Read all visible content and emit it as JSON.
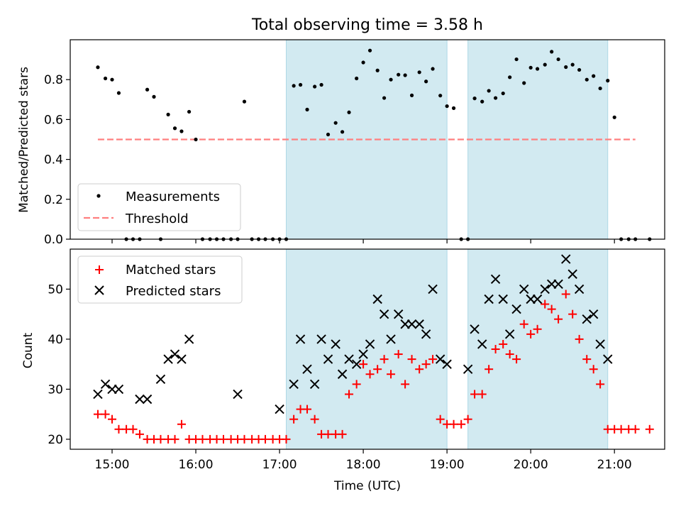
{
  "title": "Total observing time = 3.58 h",
  "colors": {
    "shade": "#add8e6",
    "measurement": "#000000",
    "threshold": "#ff7f7f",
    "matched": "#ff0000",
    "predicted": "#000000"
  },
  "chart_data": [
    {
      "type": "scatter",
      "panel": "top",
      "ylabel": "Matched/Predicted stars",
      "ylim": [
        0,
        1.0
      ],
      "yticks": [
        "0.0",
        "0.2",
        "0.4",
        "0.6",
        "0.8"
      ],
      "xlim": [
        14.5,
        21.6
      ],
      "grid": false,
      "legend": {
        "placement": "lower-left",
        "entries": [
          "Measurements",
          "Threshold"
        ]
      },
      "shaded_intervals": [
        [
          17.08,
          19.0
        ],
        [
          19.25,
          20.92
        ]
      ],
      "threshold": {
        "name": "Threshold",
        "value": 0.5,
        "x": [
          14.83,
          21.25
        ]
      },
      "series": [
        {
          "name": "Measurements",
          "marker": "dot",
          "points": [
            [
              14.83,
              0.862
            ],
            [
              14.92,
              0.806
            ],
            [
              15.0,
              0.8
            ],
            [
              15.08,
              0.733
            ],
            [
              15.25,
              0.0
            ],
            [
              15.33,
              0.0
            ],
            [
              15.17,
              0.0
            ],
            [
              15.42,
              0.75
            ],
            [
              15.5,
              0.714
            ],
            [
              15.58,
              0.0
            ],
            [
              15.67,
              0.625
            ],
            [
              15.75,
              0.556
            ],
            [
              15.83,
              0.541
            ],
            [
              15.92,
              0.639
            ],
            [
              16.0,
              0.5
            ],
            [
              16.08,
              0.0
            ],
            [
              16.17,
              0.0
            ],
            [
              16.25,
              0.0
            ],
            [
              16.33,
              0.0
            ],
            [
              16.42,
              0.0
            ],
            [
              16.5,
              0.0
            ],
            [
              16.58,
              0.69
            ],
            [
              16.67,
              0.0
            ],
            [
              16.75,
              0.0
            ],
            [
              16.83,
              0.0
            ],
            [
              16.92,
              0.0
            ],
            [
              17.0,
              0.0
            ],
            [
              17.08,
              0.0
            ],
            [
              17.17,
              0.769
            ],
            [
              17.25,
              0.774
            ],
            [
              17.33,
              0.65
            ],
            [
              17.42,
              0.765
            ],
            [
              17.5,
              0.774
            ],
            [
              17.58,
              0.525
            ],
            [
              17.67,
              0.583
            ],
            [
              17.75,
              0.538
            ],
            [
              17.83,
              0.636
            ],
            [
              17.92,
              0.806
            ],
            [
              18.0,
              0.886
            ],
            [
              18.08,
              0.946
            ],
            [
              18.17,
              0.846
            ],
            [
              18.25,
              0.708
            ],
            [
              18.33,
              0.8
            ],
            [
              18.42,
              0.825
            ],
            [
              18.5,
              0.822
            ],
            [
              18.58,
              0.721
            ],
            [
              18.67,
              0.837
            ],
            [
              18.75,
              0.791
            ],
            [
              18.83,
              0.854
            ],
            [
              18.92,
              0.72
            ],
            [
              19.0,
              0.667
            ],
            [
              19.08,
              0.657
            ],
            [
              19.17,
              0.0
            ],
            [
              19.25,
              0.0
            ],
            [
              19.33,
              0.706
            ],
            [
              19.42,
              0.69
            ],
            [
              19.5,
              0.744
            ],
            [
              19.58,
              0.708
            ],
            [
              19.67,
              0.731
            ],
            [
              19.75,
              0.812
            ],
            [
              19.83,
              0.902
            ],
            [
              19.92,
              0.783
            ],
            [
              20.0,
              0.86
            ],
            [
              20.08,
              0.854
            ],
            [
              20.17,
              0.875
            ],
            [
              20.25,
              0.94
            ],
            [
              20.33,
              0.902
            ],
            [
              20.42,
              0.863
            ],
            [
              20.5,
              0.875
            ],
            [
              20.58,
              0.849
            ],
            [
              20.67,
              0.8
            ],
            [
              20.75,
              0.818
            ],
            [
              20.83,
              0.756
            ],
            [
              20.92,
              0.795
            ],
            [
              21.0,
              0.611
            ],
            [
              21.08,
              0.0
            ],
            [
              21.17,
              0.0
            ],
            [
              21.25,
              0.0
            ],
            [
              21.42,
              0.0
            ]
          ]
        }
      ]
    },
    {
      "type": "scatter",
      "panel": "bottom",
      "xlabel": "Time (UTC)",
      "ylabel": "Count",
      "ylim": [
        18,
        58
      ],
      "yticks": [
        "20",
        "30",
        "40",
        "50"
      ],
      "xlim": [
        14.5,
        21.6
      ],
      "xticks": [
        "15:00",
        "16:00",
        "17:00",
        "18:00",
        "19:00",
        "20:00",
        "21:00"
      ],
      "grid": false,
      "legend": {
        "placement": "upper-left",
        "entries": [
          "Matched stars",
          "Predicted stars"
        ]
      },
      "shaded_intervals": [
        [
          17.08,
          19.0
        ],
        [
          19.25,
          20.92
        ]
      ],
      "series": [
        {
          "name": "Matched stars",
          "marker": "plus",
          "points": [
            [
              14.83,
              25
            ],
            [
              14.92,
              25
            ],
            [
              15.0,
              24
            ],
            [
              15.08,
              22
            ],
            [
              15.17,
              22
            ],
            [
              15.25,
              22
            ],
            [
              15.33,
              21
            ],
            [
              15.42,
              20
            ],
            [
              15.5,
              20
            ],
            [
              15.58,
              20
            ],
            [
              15.67,
              20
            ],
            [
              15.75,
              20
            ],
            [
              15.83,
              23
            ],
            [
              15.92,
              20
            ],
            [
              16.0,
              20
            ],
            [
              16.08,
              20
            ],
            [
              16.17,
              20
            ],
            [
              16.25,
              20
            ],
            [
              16.33,
              20
            ],
            [
              16.42,
              20
            ],
            [
              16.5,
              20
            ],
            [
              16.58,
              20
            ],
            [
              16.67,
              20
            ],
            [
              16.75,
              20
            ],
            [
              16.83,
              20
            ],
            [
              16.92,
              20
            ],
            [
              17.0,
              20
            ],
            [
              17.08,
              20
            ],
            [
              17.17,
              24
            ],
            [
              17.25,
              26
            ],
            [
              17.33,
              26
            ],
            [
              17.42,
              24
            ],
            [
              17.5,
              21
            ],
            [
              17.58,
              21
            ],
            [
              17.67,
              21
            ],
            [
              17.75,
              21
            ],
            [
              17.83,
              29
            ],
            [
              17.92,
              31
            ],
            [
              18.0,
              35
            ],
            [
              18.08,
              33
            ],
            [
              18.17,
              34
            ],
            [
              18.25,
              36
            ],
            [
              18.33,
              33
            ],
            [
              18.42,
              37
            ],
            [
              18.5,
              31
            ],
            [
              18.58,
              36
            ],
            [
              18.67,
              34
            ],
            [
              18.75,
              35
            ],
            [
              18.83,
              36
            ],
            [
              18.92,
              24
            ],
            [
              19.0,
              23
            ],
            [
              19.08,
              23
            ],
            [
              19.17,
              23
            ],
            [
              19.25,
              24
            ],
            [
              19.33,
              29
            ],
            [
              19.42,
              29
            ],
            [
              19.5,
              34
            ],
            [
              19.58,
              38
            ],
            [
              19.67,
              39
            ],
            [
              19.75,
              37
            ],
            [
              19.83,
              36
            ],
            [
              19.92,
              43
            ],
            [
              20.0,
              41
            ],
            [
              20.08,
              42
            ],
            [
              20.17,
              47
            ],
            [
              20.25,
              46
            ],
            [
              20.33,
              44
            ],
            [
              20.42,
              49
            ],
            [
              20.5,
              45
            ],
            [
              20.58,
              40
            ],
            [
              20.67,
              36
            ],
            [
              20.75,
              34
            ],
            [
              20.83,
              31
            ],
            [
              20.92,
              22
            ],
            [
              21.0,
              22
            ],
            [
              21.08,
              22
            ],
            [
              21.17,
              22
            ],
            [
              21.25,
              22
            ],
            [
              21.42,
              22
            ]
          ]
        },
        {
          "name": "Predicted stars",
          "marker": "x",
          "points": [
            [
              14.83,
              29
            ],
            [
              14.92,
              31
            ],
            [
              15.0,
              30
            ],
            [
              15.08,
              30
            ],
            [
              15.33,
              28
            ],
            [
              15.42,
              28
            ],
            [
              15.58,
              32
            ],
            [
              15.67,
              36
            ],
            [
              15.75,
              37
            ],
            [
              15.83,
              36
            ],
            [
              15.92,
              40
            ],
            [
              16.5,
              29
            ],
            [
              17.0,
              26
            ],
            [
              17.17,
              31
            ],
            [
              17.25,
              40
            ],
            [
              17.33,
              34
            ],
            [
              17.42,
              31
            ],
            [
              17.5,
              40
            ],
            [
              17.58,
              36
            ],
            [
              17.67,
              39
            ],
            [
              17.75,
              33
            ],
            [
              17.83,
              36
            ],
            [
              17.92,
              35
            ],
            [
              18.0,
              37
            ],
            [
              18.08,
              39
            ],
            [
              18.17,
              48
            ],
            [
              18.25,
              45
            ],
            [
              18.33,
              40
            ],
            [
              18.42,
              45
            ],
            [
              18.5,
              43
            ],
            [
              18.58,
              43
            ],
            [
              18.67,
              43
            ],
            [
              18.75,
              41
            ],
            [
              18.83,
              50
            ],
            [
              18.92,
              36
            ],
            [
              19.0,
              35
            ],
            [
              19.25,
              34
            ],
            [
              19.33,
              42
            ],
            [
              19.42,
              39
            ],
            [
              19.5,
              48
            ],
            [
              19.58,
              52
            ],
            [
              19.67,
              48
            ],
            [
              19.75,
              41
            ],
            [
              19.83,
              46
            ],
            [
              19.92,
              50
            ],
            [
              20.0,
              48
            ],
            [
              20.08,
              48
            ],
            [
              20.17,
              50
            ],
            [
              20.25,
              51
            ],
            [
              20.33,
              51
            ],
            [
              20.42,
              56
            ],
            [
              20.5,
              53
            ],
            [
              20.58,
              50
            ],
            [
              20.67,
              44
            ],
            [
              20.75,
              45
            ],
            [
              20.83,
              39
            ],
            [
              20.92,
              36
            ]
          ]
        }
      ]
    }
  ]
}
